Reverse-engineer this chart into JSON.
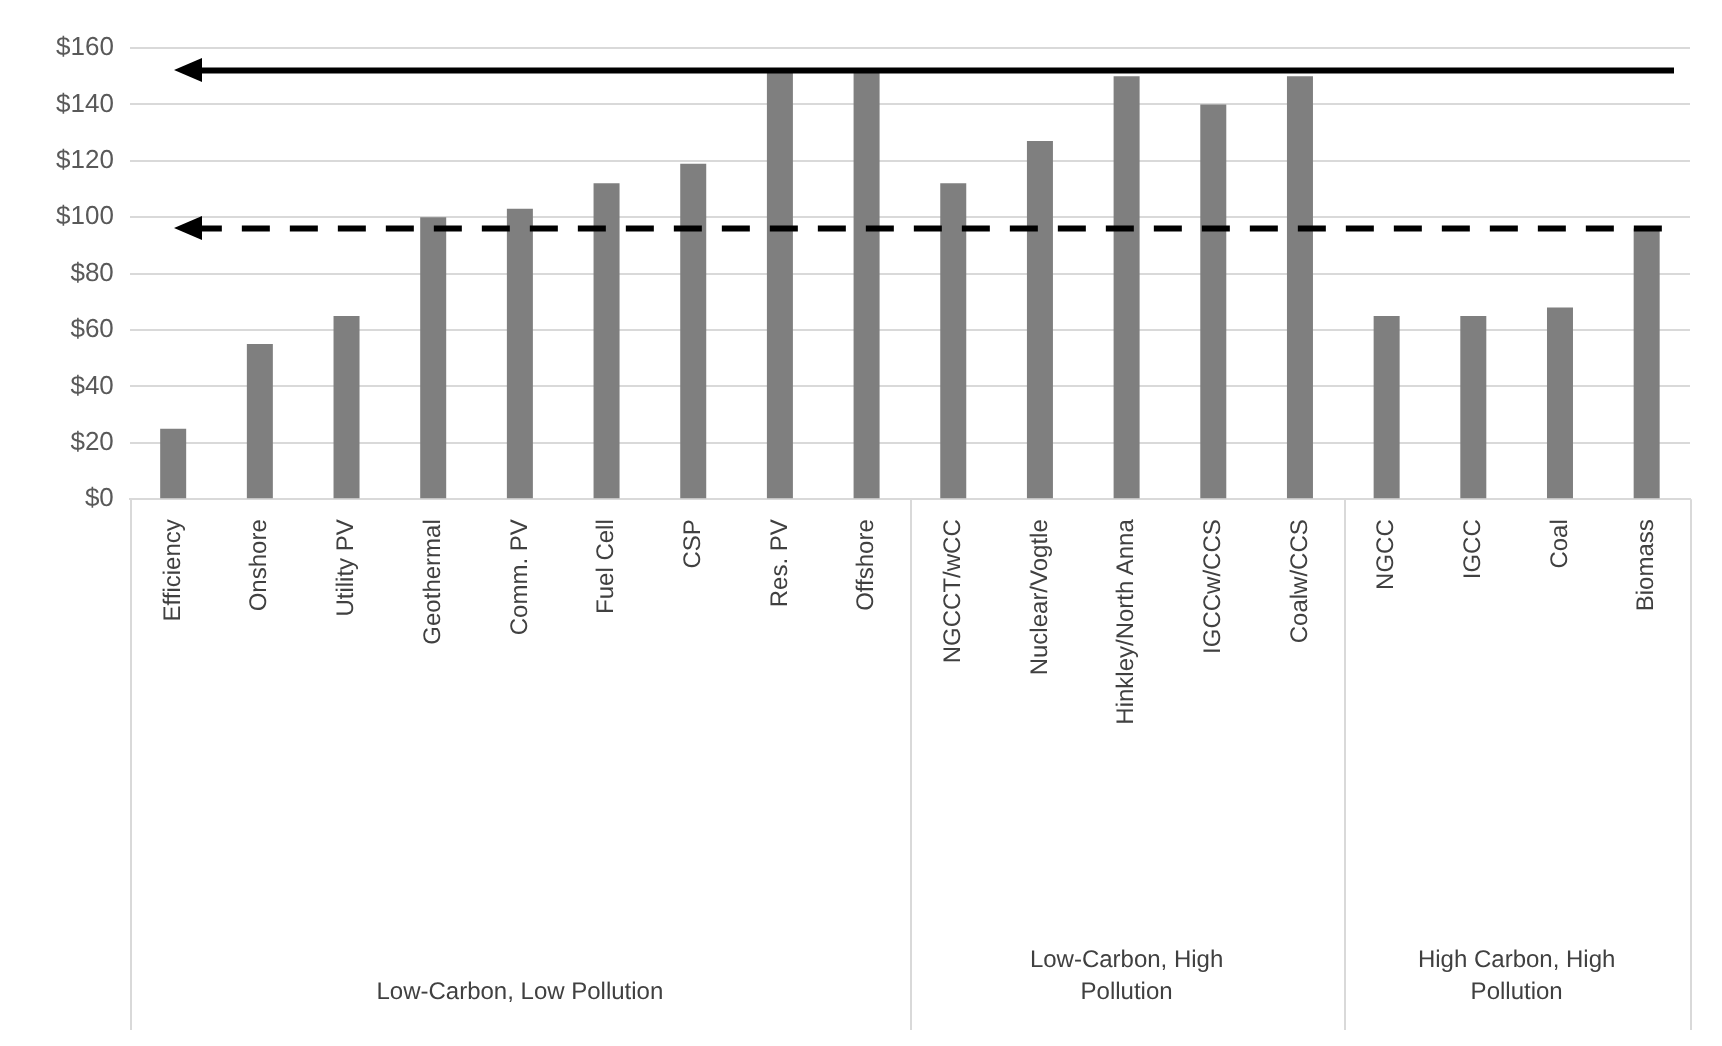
{
  "chart_data": {
    "type": "bar",
    "categories": [
      "Efficiency",
      "Onshore",
      "Utility PV",
      "Geothermal",
      "Comm. PV",
      "Fuel Cell",
      "CSP",
      "Res. PV",
      "Offshore",
      "NGCCT/wCC",
      "Nuclear/Vogtle",
      "Hinkley/North Anna",
      "IGCCw/CCS",
      "Coalw/CCS",
      "NGCC",
      "IGCC",
      "Coal",
      "Biomass"
    ],
    "values": [
      25,
      55,
      65,
      100,
      103,
      112,
      119,
      152,
      152,
      112,
      127,
      150,
      140,
      150,
      65,
      65,
      68,
      96
    ],
    "color": "#7f7f7f",
    "ylim": [
      0,
      160
    ],
    "yticks": [
      {
        "value": 0,
        "label": "$0"
      },
      {
        "value": 20,
        "label": "$20"
      },
      {
        "value": 40,
        "label": "$40"
      },
      {
        "value": 60,
        "label": "$60"
      },
      {
        "value": 80,
        "label": "$80"
      },
      {
        "value": 100,
        "label": "$100"
      },
      {
        "value": 120,
        "label": "$120"
      },
      {
        "value": 140,
        "label": "$140"
      },
      {
        "value": 160,
        "label": "$160"
      }
    ],
    "grid": "y",
    "ref_lines": [
      {
        "axis": "y",
        "value": 152,
        "color": "#000000",
        "line_style": "solid"
      },
      {
        "axis": "y",
        "value": 96,
        "color": "#000000",
        "line_style": "dashed"
      }
    ],
    "annotations": [
      "Low-Carbon, Low Pollution",
      "Low-Carbon, High Pollution",
      "High Carbon, High Pollution"
    ]
  }
}
